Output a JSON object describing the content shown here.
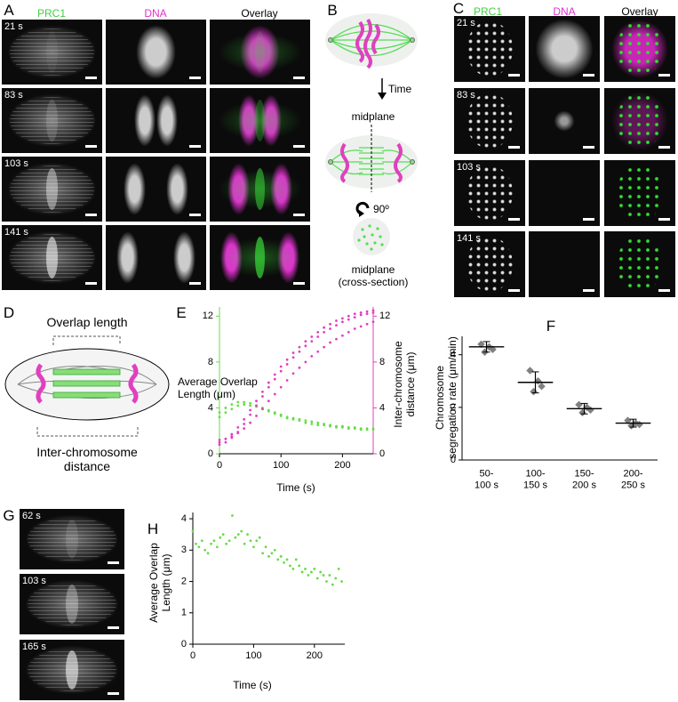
{
  "panels": {
    "A": {
      "letter": "A",
      "columns": [
        "PRC1",
        "DNA",
        "Overlay"
      ],
      "times": [
        "21 s",
        "83 s",
        "103 s",
        "141 s"
      ]
    },
    "B": {
      "letter": "B",
      "time": "Time",
      "midplane": "midplane",
      "rotation": "90º",
      "cross_section": "midplane\n(cross-section)"
    },
    "C": {
      "letter": "C",
      "columns": [
        "PRC1",
        "DNA",
        "Overlay"
      ],
      "times": [
        "21 s",
        "83 s",
        "103 s",
        "141 s"
      ]
    },
    "D": {
      "letter": "D",
      "overlap": "Overlap length",
      "distance": "Inter-chromosome\ndistance"
    },
    "G": {
      "letter": "G",
      "times": [
        "62 s",
        "103 s",
        "165 s"
      ]
    }
  },
  "chart_data": [
    {
      "letter": "E",
      "type": "scatter",
      "xlabel": "Time (s)",
      "ylabel": "Average Overlap\nLength (μm)",
      "y2label": "Inter-chromosome\ndistance (μm)",
      "xlim": [
        0,
        250
      ],
      "ylim": [
        0,
        12.8
      ],
      "y2lim": [
        0,
        12.8
      ],
      "xticks": [
        0,
        100,
        200
      ],
      "yticks": [
        0,
        4,
        8,
        12
      ],
      "y2ticks": [
        0,
        4,
        8,
        12
      ],
      "x": [
        0,
        10,
        20,
        30,
        40,
        50,
        60,
        70,
        80,
        90,
        100,
        110,
        120,
        130,
        140,
        150,
        160,
        170,
        180,
        190,
        200,
        210,
        220,
        230,
        240,
        250
      ],
      "series": [
        {
          "color": "#66dd44",
          "values": [
            3.6,
            4.0,
            4.3,
            4.5,
            4.5,
            4.4,
            4.2,
            4.0,
            3.8,
            3.6,
            3.4,
            3.2,
            3.1,
            3.0,
            2.9,
            2.8,
            2.7,
            2.6,
            2.5,
            2.4,
            2.4,
            2.3,
            2.3,
            2.2,
            2.2,
            2.2
          ]
        },
        {
          "color": "#66dd44",
          "values": [
            3.2,
            3.6,
            3.9,
            4.2,
            4.3,
            4.2,
            4.1,
            3.9,
            3.7,
            3.5,
            3.3,
            3.1,
            3.0,
            2.9,
            2.7,
            2.6,
            2.5,
            2.5,
            2.4,
            2.3,
            2.3,
            2.2,
            2.2,
            2.1,
            2.1,
            2.1
          ]
        },
        {
          "color": "#e040c0",
          "axis": "y2",
          "values": [
            1.0,
            1.3,
            1.7,
            2.3,
            3.0,
            3.8,
            4.6,
            5.4,
            6.2,
            6.9,
            7.6,
            8.2,
            8.8,
            9.3,
            9.8,
            10.2,
            10.6,
            11.0,
            11.3,
            11.6,
            11.8,
            12.0,
            12.2,
            12.3,
            12.4,
            12.5
          ]
        },
        {
          "color": "#e040c0",
          "axis": "y2",
          "values": [
            0.8,
            1.0,
            1.4,
            1.9,
            2.6,
            3.4,
            4.2,
            5.0,
            5.8,
            6.5,
            7.2,
            7.8,
            8.4,
            8.9,
            9.4,
            9.8,
            10.2,
            10.6,
            10.9,
            11.2,
            11.5,
            11.7,
            11.9,
            12.1,
            12.2,
            12.3
          ]
        },
        {
          "color": "#e040c0",
          "axis": "y2",
          "values": [
            1.2,
            1.3,
            1.5,
            1.8,
            2.2,
            2.7,
            3.3,
            3.9,
            4.6,
            5.2,
            5.8,
            6.4,
            7.0,
            7.5,
            8.0,
            8.5,
            8.9,
            9.3,
            9.7,
            10.0,
            10.3,
            10.6,
            10.9,
            11.1,
            11.3,
            11.5
          ]
        }
      ]
    },
    {
      "letter": "F",
      "type": "strip",
      "ylabel": "Chromosome\nsegregation rate (μm/min)",
      "categories": [
        "50-\n100 s",
        "100-\n150 s",
        "150-\n200 s",
        "200-\n250 s"
      ],
      "values": [
        4.3,
        2.95,
        1.95,
        1.4
      ],
      "errors": [
        0.2,
        0.4,
        0.2,
        0.15
      ],
      "points": [
        [
          4.4,
          4.3,
          4.2,
          4.1
        ],
        [
          3.4,
          3.0,
          2.8,
          2.6
        ],
        [
          2.1,
          2.0,
          1.9,
          1.8
        ],
        [
          1.5,
          1.4,
          1.35,
          1.3
        ]
      ],
      "color": "#808080",
      "ylim": [
        0,
        4.7
      ],
      "yticks": [
        0,
        2,
        4
      ]
    },
    {
      "letter": "H",
      "type": "scatter",
      "xlabel": "Time (s)",
      "ylabel": "Average Overlap\nLength (μm)",
      "xlim": [
        0,
        250
      ],
      "ylim": [
        0,
        4.2
      ],
      "xticks": [
        0,
        100,
        200
      ],
      "yticks": [
        0,
        1,
        2,
        3,
        4
      ],
      "x": [
        0,
        5,
        10,
        15,
        20,
        25,
        30,
        35,
        40,
        45,
        50,
        55,
        60,
        65,
        70,
        75,
        80,
        85,
        90,
        95,
        100,
        105,
        110,
        115,
        120,
        125,
        130,
        135,
        140,
        145,
        150,
        155,
        160,
        165,
        170,
        175,
        180,
        185,
        190,
        195,
        200,
        205,
        210,
        215,
        220,
        225,
        230,
        235,
        240,
        245
      ],
      "series": [
        {
          "color": "#66dd44",
          "values": [
            3.6,
            3.2,
            3.1,
            3.3,
            3.0,
            2.9,
            3.2,
            3.3,
            3.1,
            3.4,
            3.5,
            3.2,
            3.3,
            4.1,
            3.4,
            3.5,
            3.6,
            3.2,
            3.5,
            3.3,
            3.1,
            3.3,
            3.4,
            2.9,
            3.1,
            2.8,
            2.9,
            3.0,
            2.7,
            2.8,
            2.6,
            2.7,
            2.5,
            2.4,
            2.7,
            2.5,
            2.3,
            2.4,
            2.2,
            2.3,
            2.4,
            2.1,
            2.3,
            2.2,
            2.0,
            2.2,
            1.9,
            2.1,
            2.4,
            2.0
          ]
        }
      ]
    }
  ]
}
